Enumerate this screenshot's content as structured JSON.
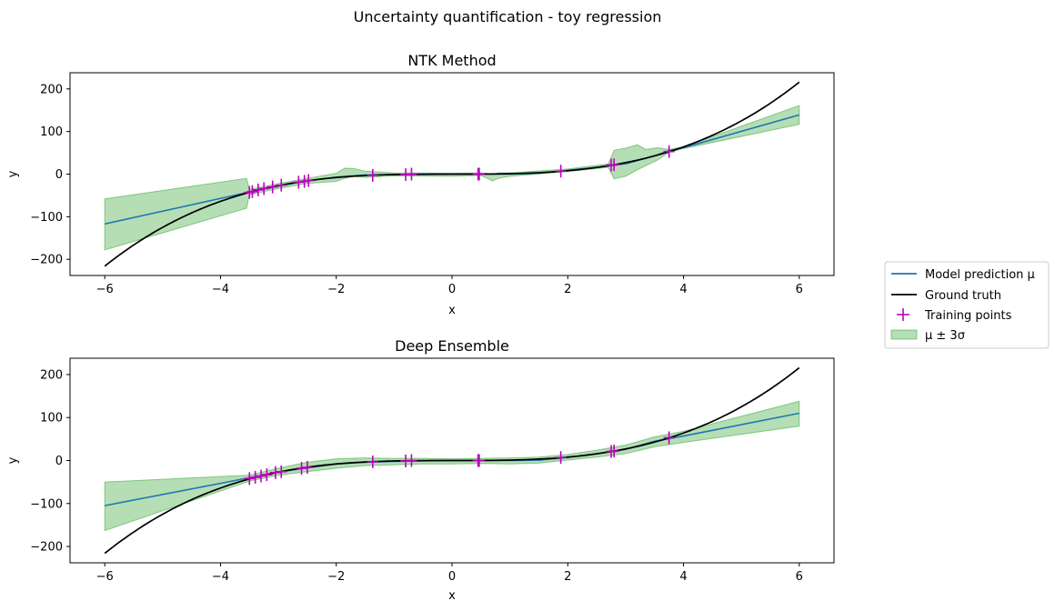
{
  "figure": {
    "suptitle": "Uncertainty quantification - toy regression"
  },
  "legend": {
    "placement": "right",
    "entries": [
      {
        "label": "Model prediction μ",
        "kind": "line",
        "color": "#1f77b4"
      },
      {
        "label": "Ground truth",
        "kind": "line",
        "color": "#000000"
      },
      {
        "label": "Training points",
        "kind": "marker",
        "color": "#bf00bf"
      },
      {
        "label": "μ ± 3σ",
        "kind": "patch",
        "color": "#2ca02c"
      }
    ]
  },
  "chart_data": [
    {
      "type": "line",
      "title": "NTK Method",
      "xlabel": "x",
      "ylabel": "y",
      "xlim": [
        -6.6,
        6.6
      ],
      "ylim": [
        -238,
        238
      ],
      "xticks": [
        -6,
        -4,
        -2,
        0,
        2,
        4,
        6
      ],
      "xtick_labels": [
        "−6",
        "−4",
        "−2",
        "0",
        "2",
        "4",
        "6"
      ],
      "yticks": [
        -200,
        -100,
        0,
        100,
        200
      ],
      "ytick_labels": [
        "−200",
        "−100",
        "0",
        "100",
        "200"
      ],
      "grid": false,
      "ground_truth": {
        "name": "Ground truth",
        "function": "y = x^3",
        "x_range": [
          -6,
          6
        ]
      },
      "prediction": {
        "name": "Model prediction μ",
        "x": [
          -6,
          -3.5,
          -3.0,
          -2.5,
          -2.0,
          -1.5,
          -1.0,
          -0.5,
          0,
          0.5,
          1.0,
          1.5,
          2.0,
          2.5,
          3.0,
          3.5,
          3.75,
          4.0,
          6.0
        ],
        "y": [
          -117,
          -42,
          -28,
          -16,
          -7,
          -2,
          -1,
          -1,
          0,
          0,
          0,
          2,
          9,
          16,
          24,
          43,
          55,
          62,
          139
        ]
      },
      "band": {
        "name": "μ ± 3σ",
        "x": [
          -6,
          -3.55,
          -3.5,
          -3.0,
          -2.5,
          -2.0,
          -1.85,
          -1.7,
          -1.5,
          -1.0,
          0,
          0.5,
          0.7,
          0.8,
          1.0,
          2.0,
          2.7,
          2.8,
          3.0,
          3.2,
          3.35,
          3.55,
          3.75,
          4.0,
          6.0
        ],
        "upper": [
          -58,
          -10,
          -36,
          -22,
          -10,
          2,
          14,
          13,
          7,
          3,
          2,
          3,
          0,
          3,
          3,
          12,
          24,
          56,
          61,
          69,
          58,
          62,
          58,
          64,
          161
        ],
        "lower": [
          -178,
          -80,
          -48,
          -34,
          -22,
          -17,
          -10,
          -5,
          -8,
          -4,
          -5,
          -3,
          -16,
          -10,
          -5,
          6,
          16,
          -11,
          -5,
          10,
          20,
          33,
          51,
          60,
          117
        ]
      },
      "training_points": {
        "name": "Training points",
        "x": [
          -3.5,
          -3.45,
          -3.35,
          -3.25,
          -3.1,
          -2.95,
          -2.65,
          -2.55,
          -2.48,
          -1.37,
          -0.8,
          -0.7,
          0.45,
          0.47,
          1.88,
          2.75,
          2.8,
          3.75
        ],
        "y": [
          -43,
          -41,
          -37,
          -34,
          -30,
          -26,
          -19,
          -17,
          -15,
          -3,
          -1,
          0,
          0,
          0,
          7,
          21,
          22,
          53
        ]
      }
    },
    {
      "type": "line",
      "title": "Deep Ensemble",
      "xlabel": "x",
      "ylabel": "y",
      "xlim": [
        -6.6,
        6.6
      ],
      "ylim": [
        -238,
        238
      ],
      "xticks": [
        -6,
        -4,
        -2,
        0,
        2,
        4,
        6
      ],
      "xtick_labels": [
        "−6",
        "−4",
        "−2",
        "0",
        "2",
        "4",
        "6"
      ],
      "yticks": [
        -200,
        -100,
        0,
        100,
        200
      ],
      "ytick_labels": [
        "−200",
        "−100",
        "0",
        "100",
        "200"
      ],
      "grid": false,
      "ground_truth": {
        "name": "Ground truth",
        "function": "y = x^3",
        "x_range": [
          -6,
          6
        ]
      },
      "prediction": {
        "name": "Model prediction μ",
        "x": [
          -6,
          -3.5,
          -3.0,
          -2.5,
          -2.0,
          -1.5,
          -1.0,
          -0.5,
          0,
          0.5,
          1.0,
          1.5,
          2.0,
          2.5,
          3.0,
          3.5,
          4.0,
          6.0
        ],
        "y": [
          -105,
          -40,
          -27,
          -17,
          -8,
          -4,
          -2,
          -1,
          0,
          0,
          0,
          1,
          7,
          16,
          26,
          45,
          57,
          110
        ]
      },
      "band": {
        "name": "μ ± 3σ",
        "x": [
          -6,
          -3.5,
          -3.0,
          -2.5,
          -2.0,
          -1.5,
          -1.0,
          -0.5,
          0,
          0.5,
          1.0,
          1.5,
          2.0,
          2.5,
          3.0,
          3.5,
          4.0,
          6.0
        ],
        "upper": [
          -50,
          -34,
          -18,
          -4,
          4,
          6,
          5,
          5,
          4,
          5,
          6,
          8,
          14,
          24,
          36,
          55,
          68,
          138
        ],
        "lower": [
          -163,
          -48,
          -34,
          -26,
          -18,
          -12,
          -10,
          -8,
          -8,
          -7,
          -8,
          -6,
          1,
          8,
          16,
          32,
          42,
          80
        ]
      },
      "training_points": {
        "name": "Training points",
        "x": [
          -3.5,
          -3.4,
          -3.3,
          -3.2,
          -3.05,
          -2.95,
          -2.6,
          -2.5,
          -1.37,
          -0.8,
          -0.7,
          0.45,
          0.47,
          1.88,
          2.75,
          2.8,
          3.75
        ],
        "y": [
          -42,
          -39,
          -36,
          -33,
          -28,
          -26,
          -18,
          -16,
          -3,
          -1,
          0,
          0,
          0,
          7,
          21,
          22,
          53
        ]
      }
    }
  ]
}
